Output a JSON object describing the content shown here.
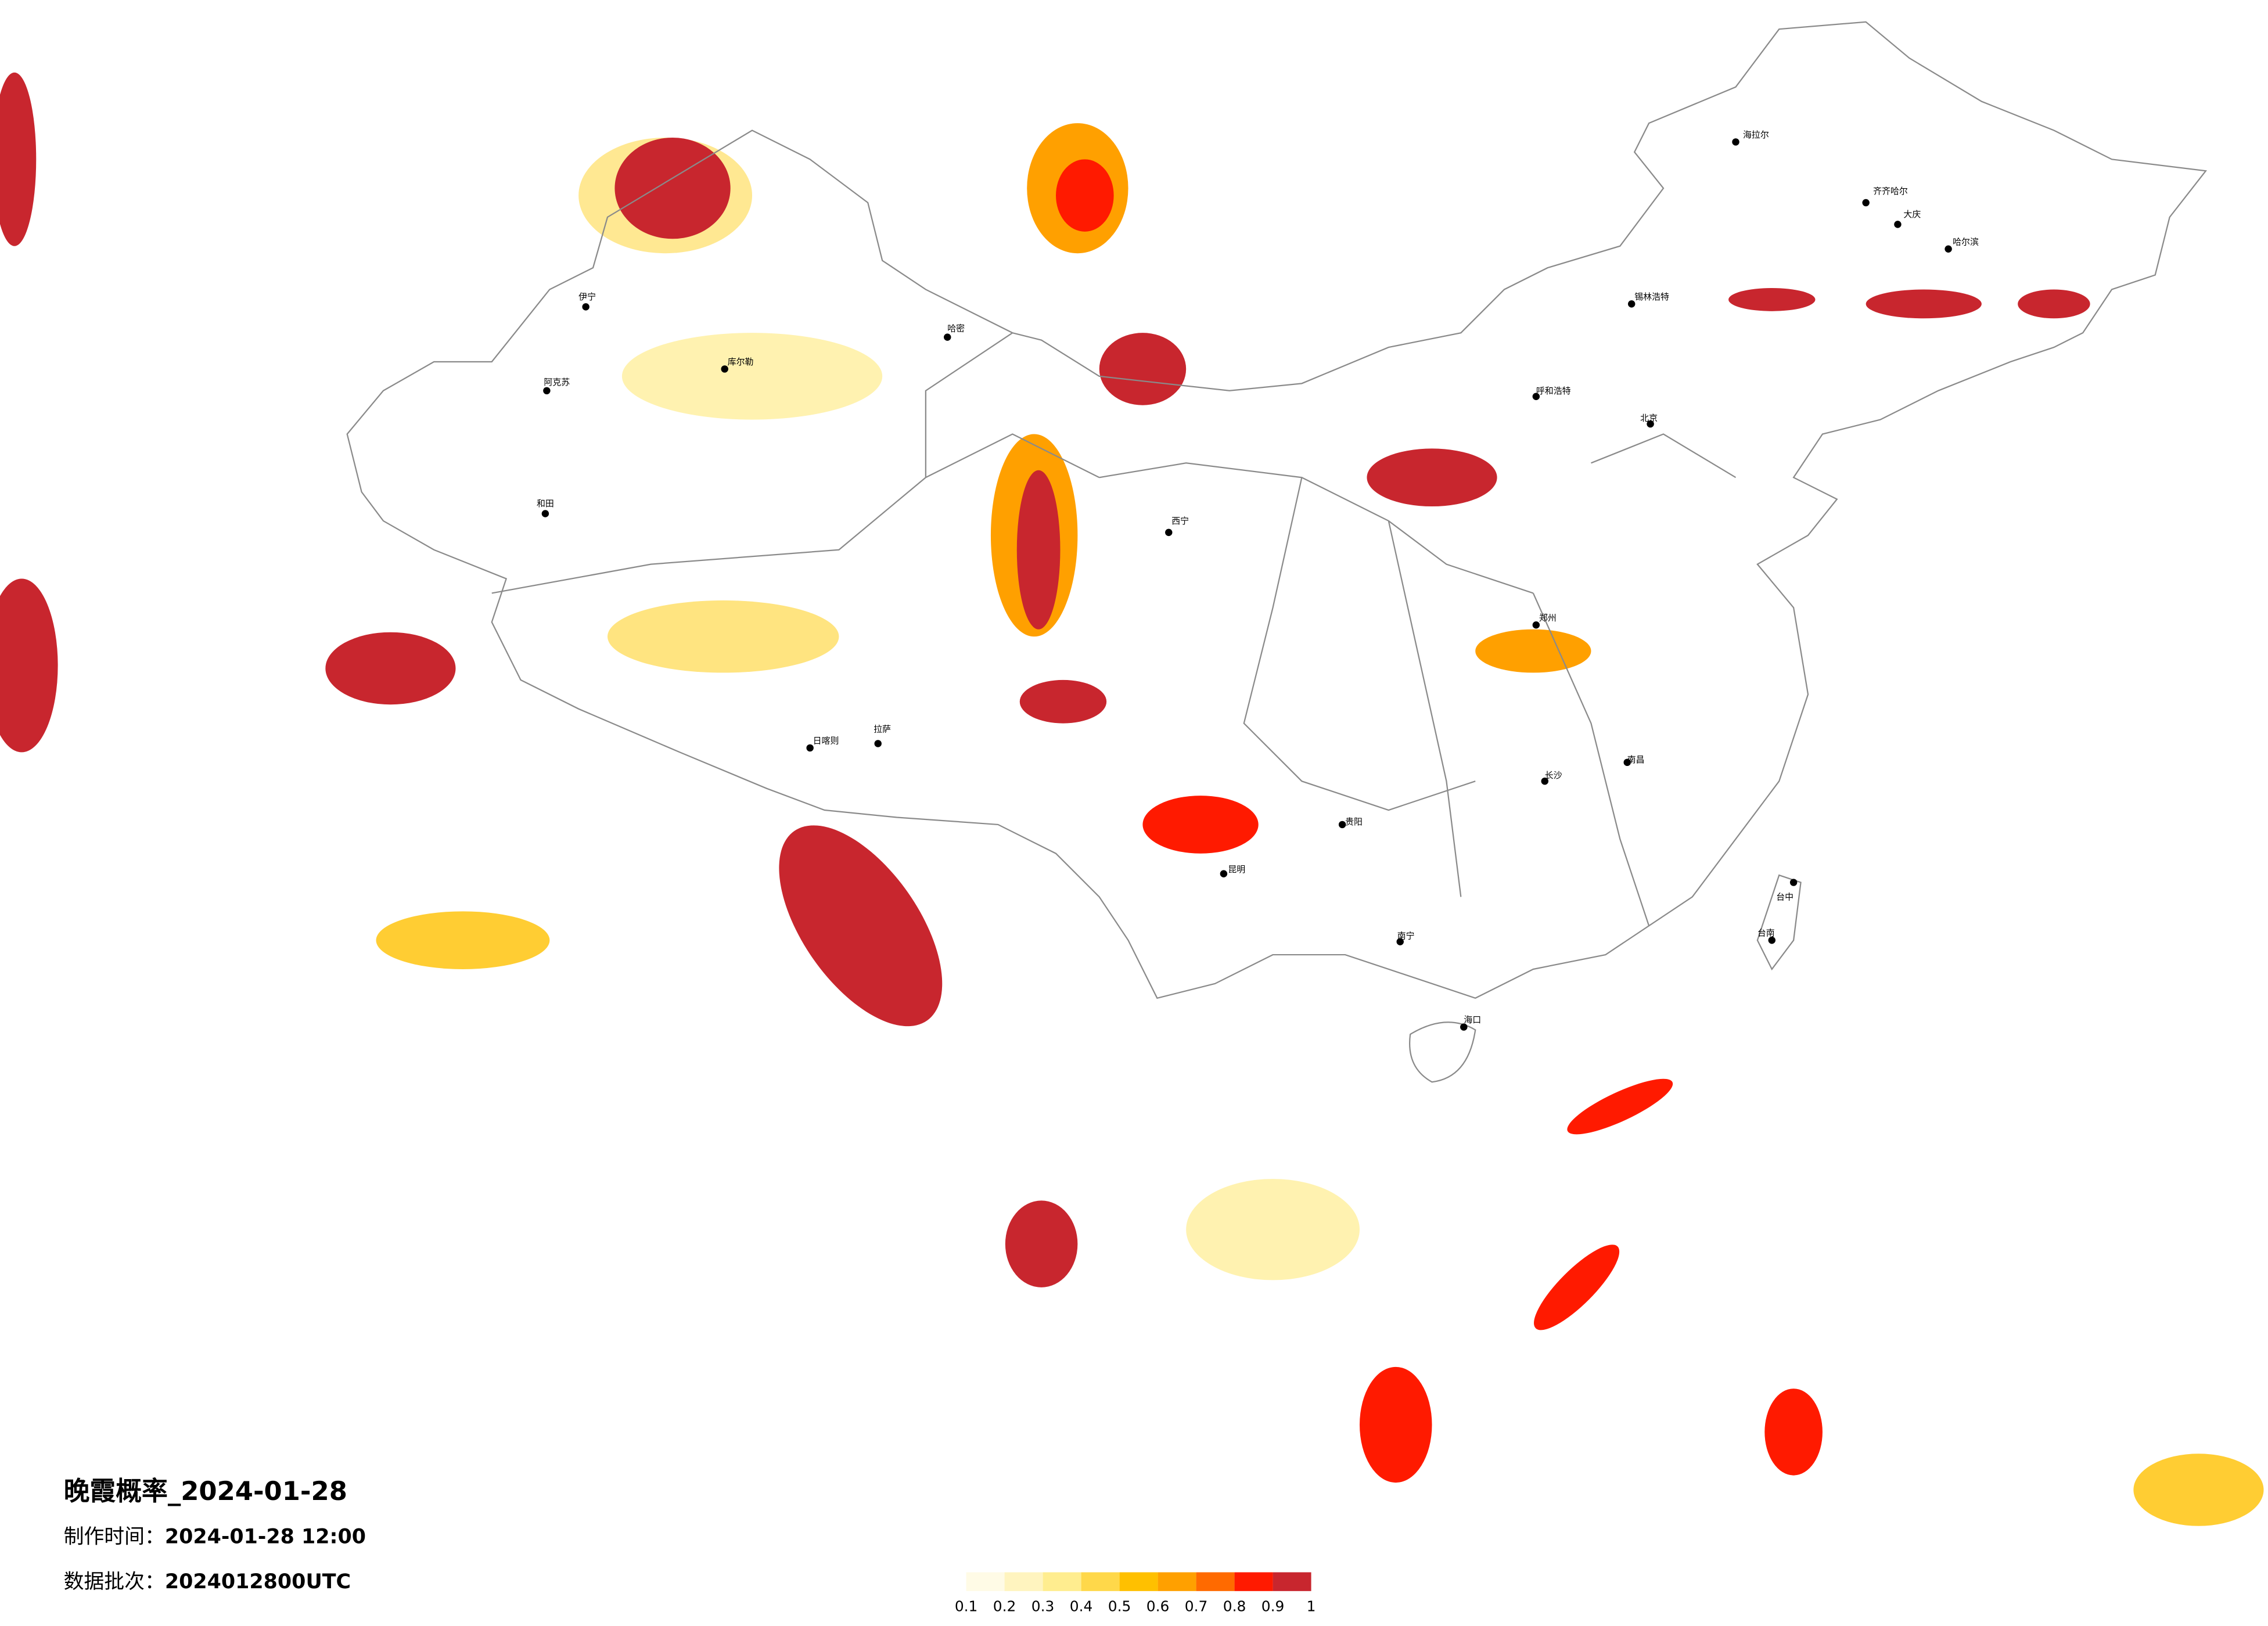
{
  "title": "晚霞概率_2024-01-28",
  "info": [
    {
      "label": "制作时间：",
      "value": "2024-01-28 12:00"
    },
    {
      "label": "数据批次：",
      "value": "2024012800UTC"
    }
  ],
  "legend": {
    "colors": [
      "#fffbe6",
      "#fff4bf",
      "#ffed8f",
      "#ffd84a",
      "#ffc000",
      "#ffa000",
      "#ff6a00",
      "#ff1a00",
      "#c8262e"
    ],
    "ticks": [
      0.1,
      0.2,
      0.3,
      0.4,
      0.5,
      0.6,
      0.7,
      0.8,
      0.9,
      1
    ]
  },
  "cities": [
    "伊宁",
    "阿克苏",
    "和田",
    "库尔勒",
    "哈密",
    "日喀则",
    "拉萨",
    "北京",
    "呼和浩特",
    "锡林浩特",
    "海拉尔",
    "齐齐哈尔",
    "大庆",
    "哈尔滨",
    "昆明",
    "贵阳",
    "南宁",
    "海口",
    "长沙",
    "南昌",
    "台中",
    "台南",
    "郑州",
    "西宁"
  ]
}
